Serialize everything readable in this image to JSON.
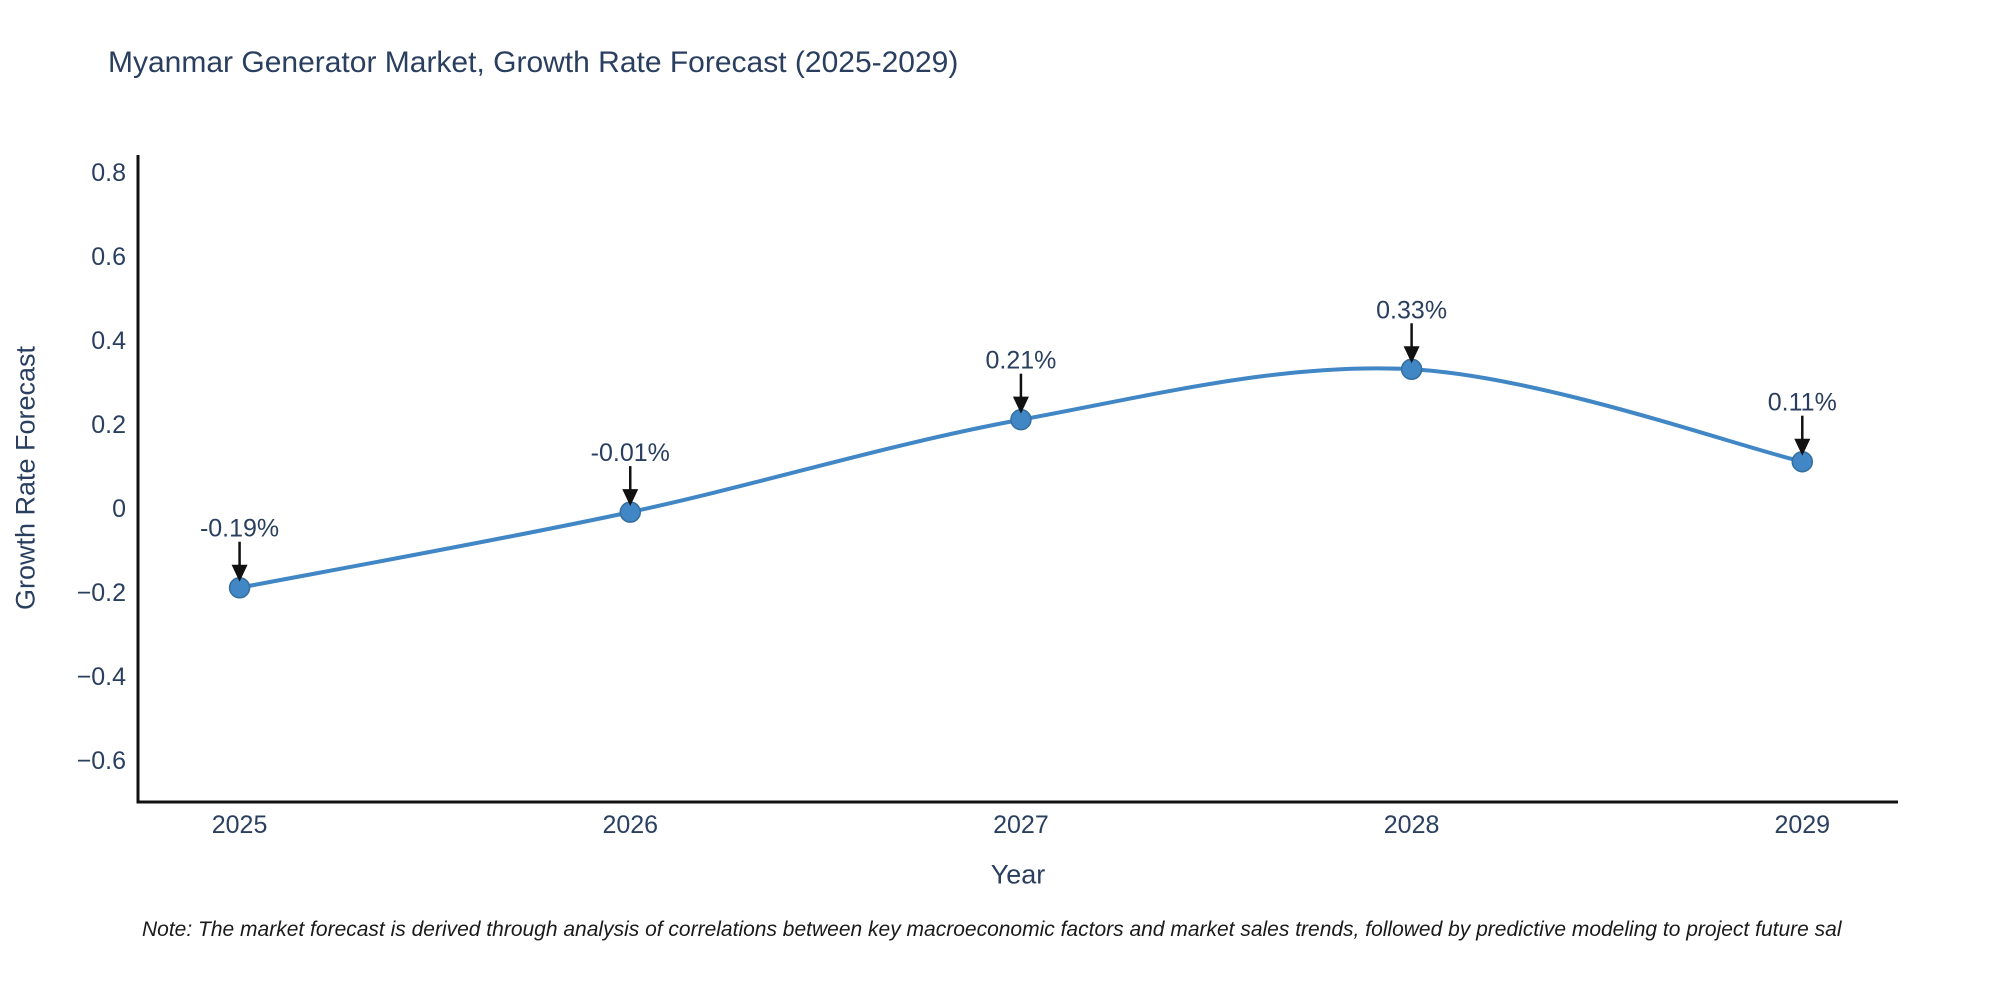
{
  "chart_data": {
    "type": "line",
    "title": "Myanmar Generator Market, Growth Rate Forecast (2025-2029)",
    "xlabel": "Year",
    "ylabel": "Growth Rate Forecast",
    "x": [
      2025,
      2026,
      2027,
      2028,
      2029
    ],
    "values": [
      -0.19,
      -0.01,
      0.21,
      0.33,
      0.11
    ],
    "point_labels": [
      "-0.19%",
      "-0.01%",
      "0.21%",
      "0.33%",
      "0.11%"
    ],
    "x_tick_labels": [
      "2025",
      "2026",
      "2027",
      "2028",
      "2029"
    ],
    "y_ticks": [
      0.8,
      0.6,
      0.4,
      0.2,
      0,
      -0.2,
      -0.4,
      -0.6
    ],
    "y_tick_labels": [
      "0.8",
      "0.6",
      "0.4",
      "0.2",
      "0",
      "−0.2",
      "−0.4",
      "−0.6"
    ],
    "xlim": [
      2024.74,
      2029.245
    ],
    "ylim": [
      -0.7,
      0.84
    ],
    "grid": false,
    "legend": "none",
    "line_shape": "spline",
    "colors": {
      "line": "#4186c5",
      "marker_fill": "#4186c5",
      "marker_edge": "#356f9e",
      "axis_line": "#111111",
      "tick_text": "#2a3f5f",
      "annotation_text": "#2a3f5f",
      "arrow": "#111111"
    }
  },
  "note": {
    "text": "Note: The market forecast is derived through analysis of correlations between key macroeconomic factors and market sales trends, followed by predictive modeling to project future sal"
  }
}
